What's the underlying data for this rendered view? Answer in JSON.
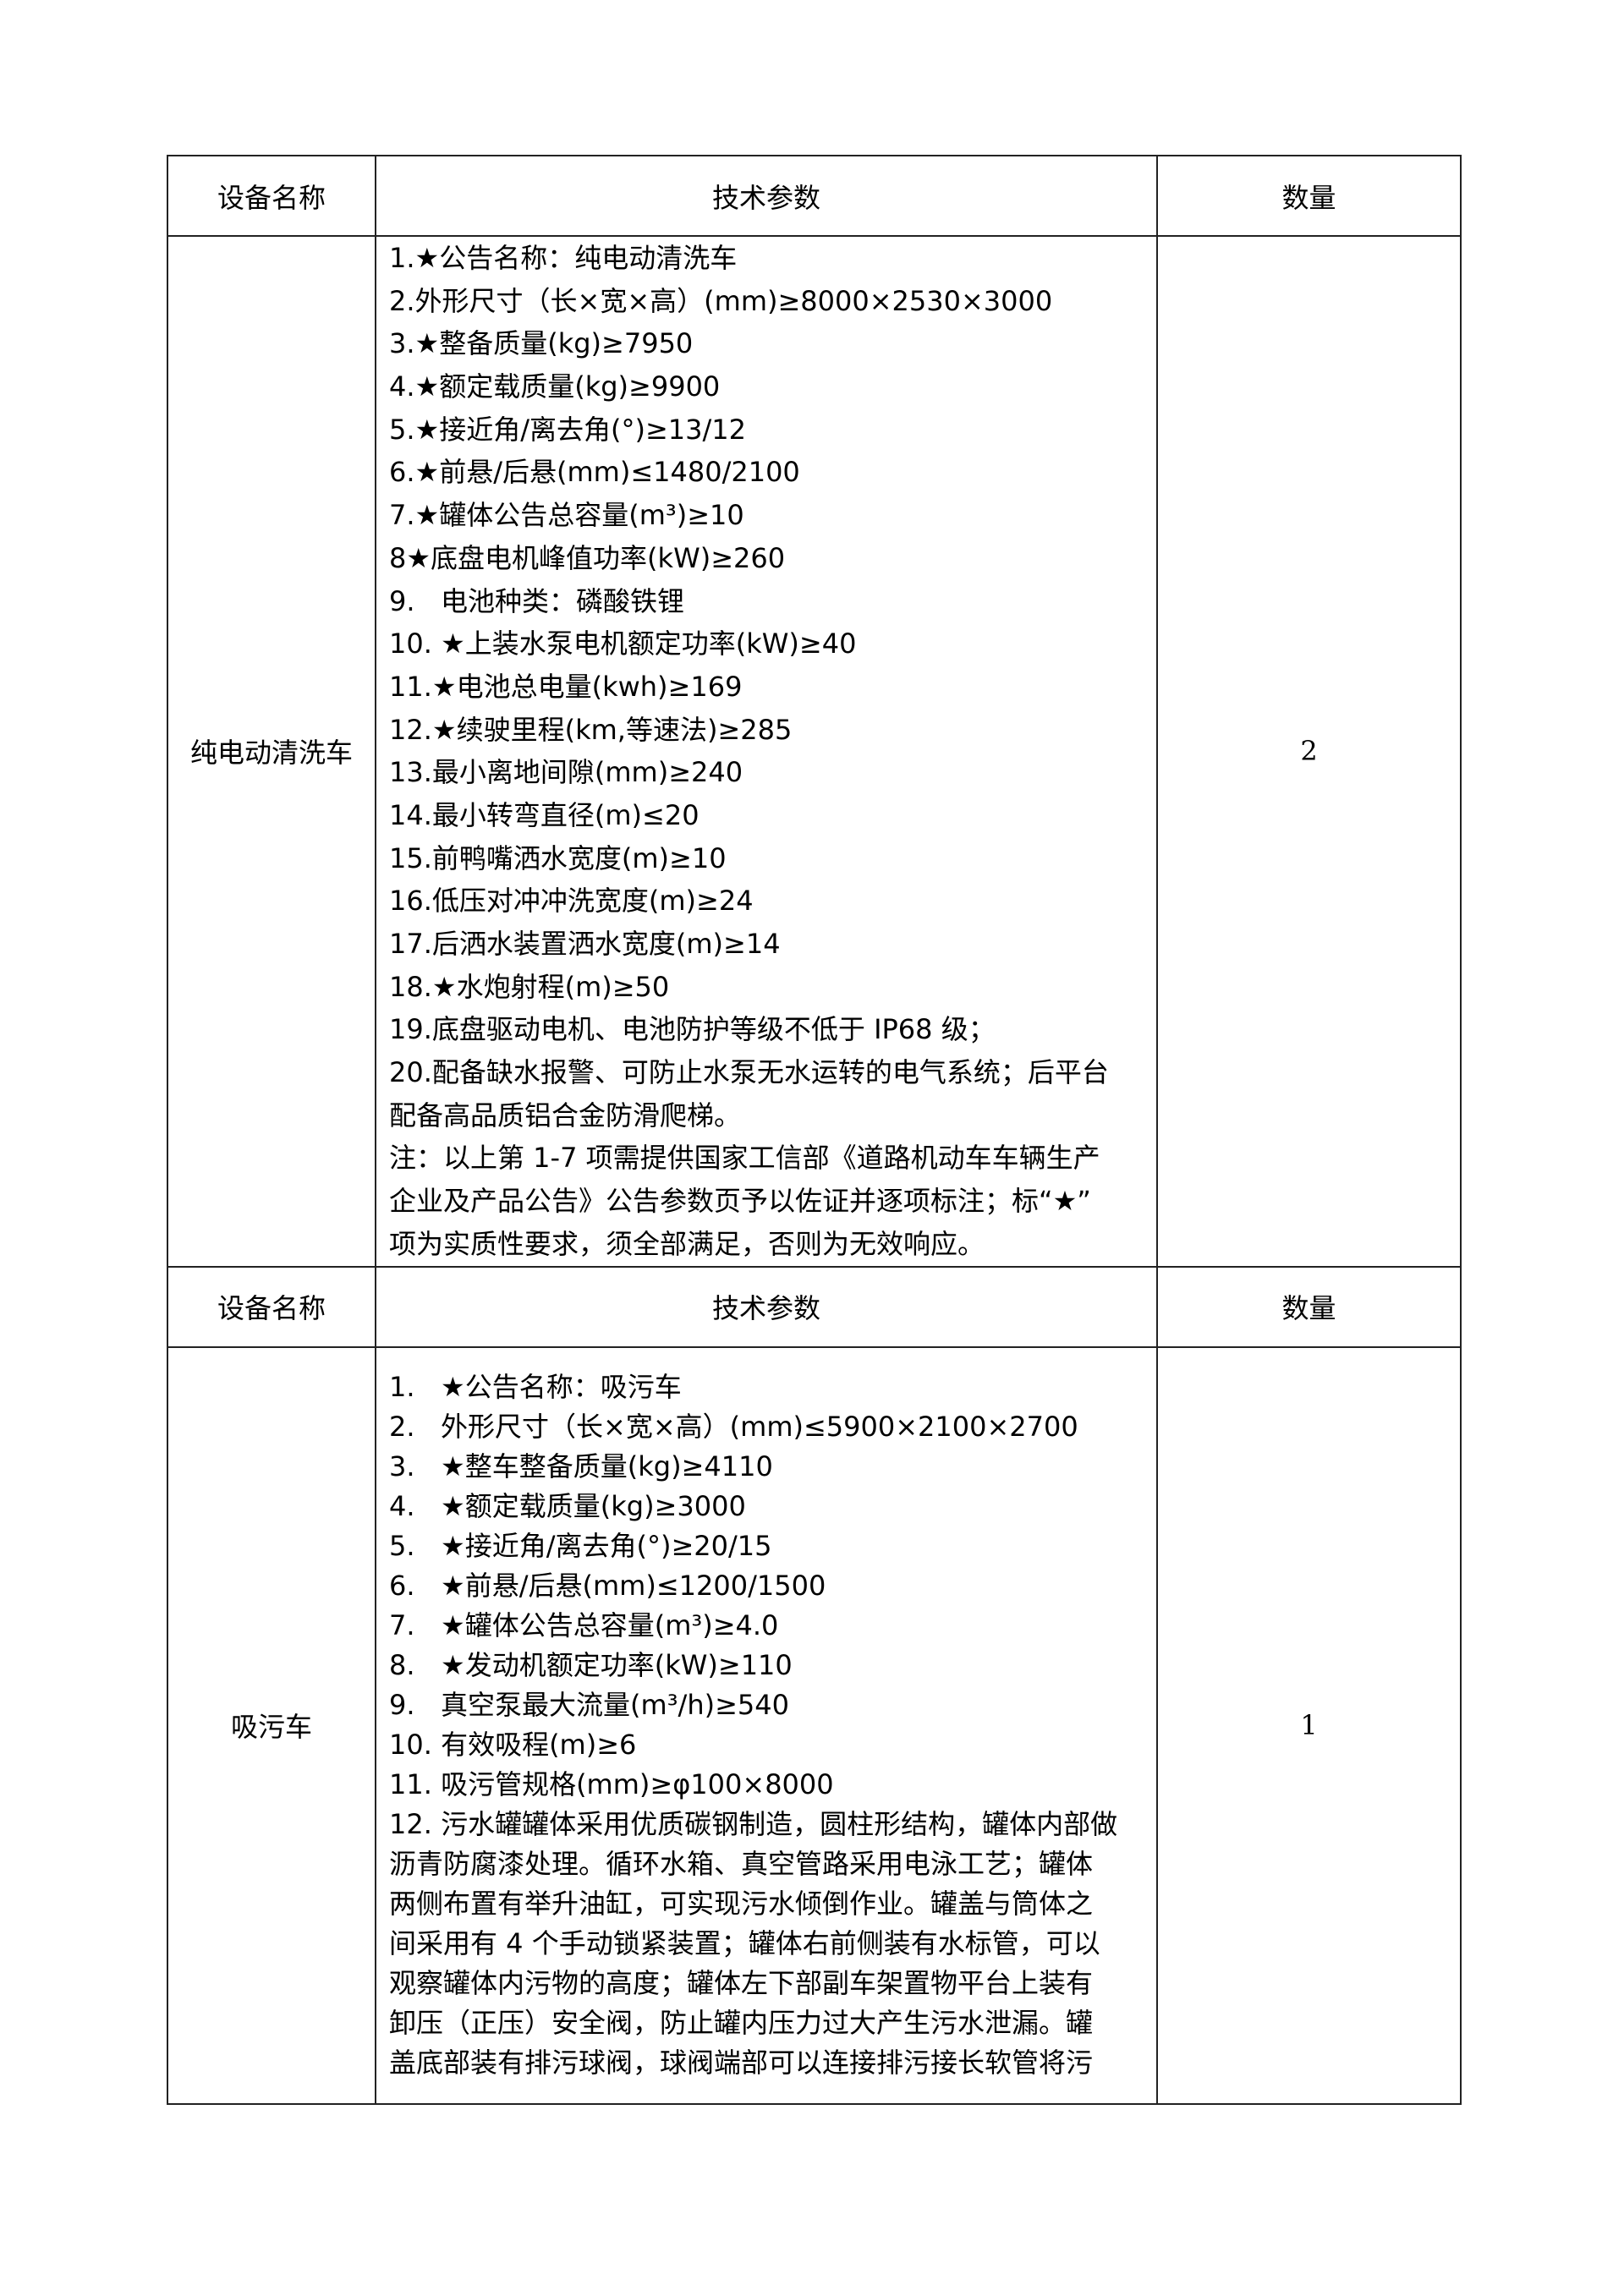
{
  "headers": {
    "name": "设备名称",
    "params": "技术参数",
    "qty": "数量"
  },
  "items": [
    {
      "name": "纯电动清洗车",
      "qty": "2",
      "lines": [
        "1.★公告名称：纯电动清洗车",
        "2.外形尺寸（长×宽×高）(mm)≥8000×2530×3000",
        "3.★整备质量(kg)≥7950",
        "4.★额定载质量(kg)≥9900",
        "5.★接近角/离去角(°)≥13/12",
        "6.★前悬/后悬(mm)≤1480/2100",
        "7.★罐体公告总容量(m³)≥10",
        "8★底盘电机峰值功率(kW)≥260",
        "9.   电池种类：磷酸铁锂",
        "10. ★上装水泵电机额定功率(kW)≥40",
        "11.★电池总电量(kwh)≥169",
        "12.★续驶里程(km,等速法)≥285",
        "13.最小离地间隙(mm)≥240",
        "14.最小转弯直径(m)≤20",
        "15.前鸭嘴洒水宽度(m)≥10",
        "16.低压对冲冲洗宽度(m)≥24",
        "17.后洒水装置洒水宽度(m)≥14",
        "18.★水炮射程(m)≥50",
        "19.底盘驱动电机、电池防护等级不低于 IP68 级；",
        "20.配备缺水报警、可防止水泵无水运转的电气系统；后平台",
        "配备高品质铝合金防滑爬梯。",
        "注：以上第 1-7 项需提供国家工信部《道路机动车车辆生产",
        "企业及产品公告》公告参数页予以佐证并逐项标注；标“★”",
        "项为实质性要求，须全部满足，否则为无效响应。"
      ]
    },
    {
      "name": "吸污车",
      "qty": "1",
      "lines": [
        "1.   ★公告名称：吸污车",
        "2.   外形尺寸（长×宽×高）(mm)≤5900×2100×2700",
        "3.   ★整车整备质量(kg)≥4110",
        "4.   ★额定载质量(kg)≥3000",
        "5.   ★接近角/离去角(°)≥20/15",
        "6.   ★前悬/后悬(mm)≤1200/1500",
        "7.   ★罐体公告总容量(m³)≥4.0",
        "8.   ★发动机额定功率(kW)≥110",
        "9.   真空泵最大流量(m³/h)≥540",
        "10. 有效吸程(m)≥6",
        "11. 吸污管规格(mm)≥φ100×8000",
        "12. 污水罐罐体采用优质碳钢制造，圆柱形结构，罐体内部做",
        "沥青防腐漆处理。循环水箱、真空管路采用电泳工艺；罐体",
        "两侧布置有举升油缸，可实现污水倾倒作业。罐盖与筒体之",
        "间采用有 4 个手动锁紧装置；罐体右前侧装有水标管，可以",
        "观察罐体内污物的高度；罐体左下部副车架置物平台上装有",
        "卸压（正压）安全阀，防止罐内压力过大产生污水泄漏。罐",
        "盖底部装有排污球阀，球阀端部可以连接排污接长软管将污"
      ]
    }
  ]
}
